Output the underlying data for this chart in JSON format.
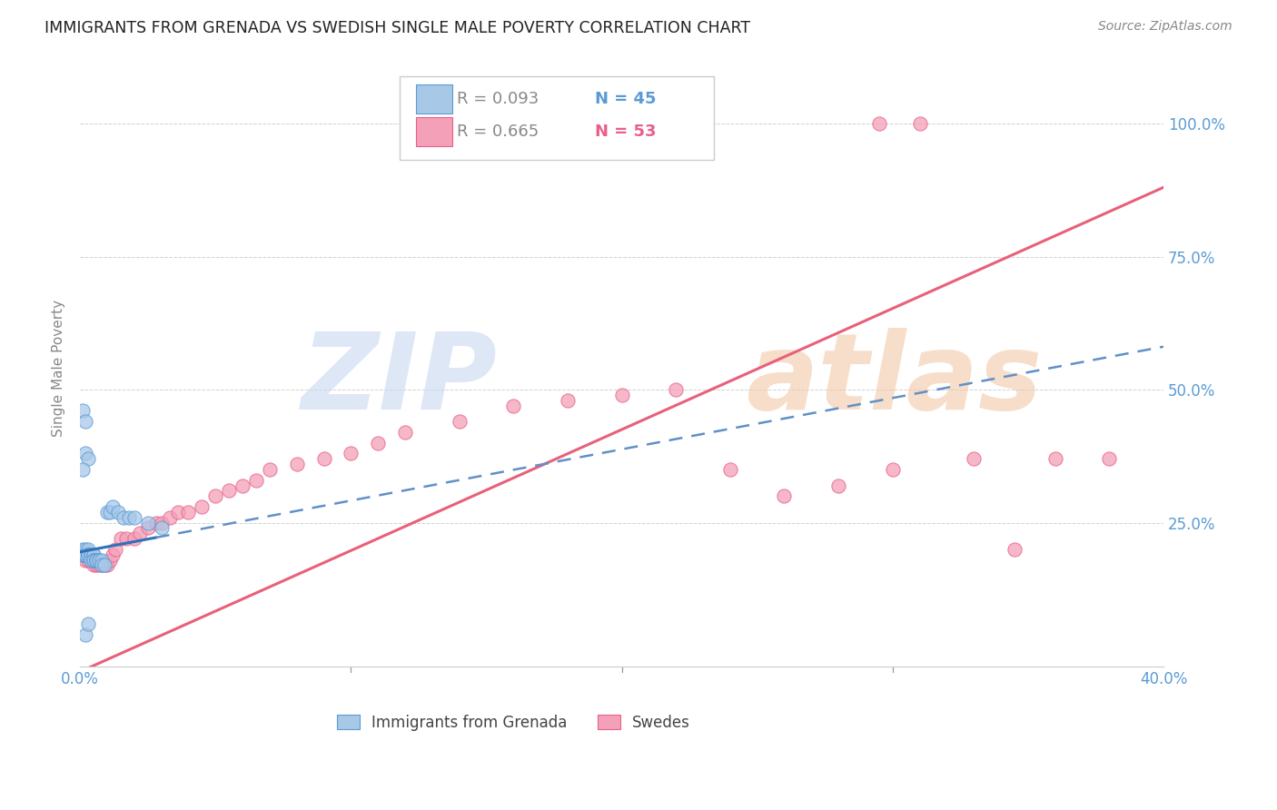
{
  "title": "IMMIGRANTS FROM GRENADA VS SWEDISH SINGLE MALE POVERTY CORRELATION CHART",
  "source": "Source: ZipAtlas.com",
  "ylabel": "Single Male Poverty",
  "legend_blue_r": "R = 0.093",
  "legend_blue_n": "N = 45",
  "legend_pink_r": "R = 0.665",
  "legend_pink_n": "N = 53",
  "legend_label_blue": "Immigrants from Grenada",
  "legend_label_pink": "Swedes",
  "xlim": [
    0.0,
    0.4
  ],
  "ylim": [
    -0.02,
    1.1
  ],
  "yticks": [
    0.25,
    0.5,
    0.75,
    1.0
  ],
  "ytick_labels": [
    "25.0%",
    "50.0%",
    "75.0%",
    "100.0%"
  ],
  "xticks": [
    0.0,
    0.4
  ],
  "xtick_labels": [
    "0.0%",
    "40.0%"
  ],
  "color_blue": "#a8c8e8",
  "color_pink": "#f4a0b8",
  "edge_blue": "#5b9bd5",
  "edge_pink": "#e8608a",
  "trend_blue_solid": "#3070b8",
  "trend_blue_dashed": "#6090c8",
  "trend_pink": "#e8607a",
  "blue_x": [
    0.001,
    0.001,
    0.001,
    0.001,
    0.002,
    0.002,
    0.002,
    0.002,
    0.002,
    0.003,
    0.003,
    0.003,
    0.003,
    0.003,
    0.004,
    0.004,
    0.004,
    0.004,
    0.005,
    0.005,
    0.005,
    0.005,
    0.005,
    0.006,
    0.006,
    0.006,
    0.006,
    0.007,
    0.007,
    0.008,
    0.008,
    0.009,
    0.01,
    0.011,
    0.012,
    0.014,
    0.016,
    0.018,
    0.02,
    0.025,
    0.03,
    0.002,
    0.003,
    0.001,
    0.003
  ],
  "blue_y": [
    0.2,
    0.19,
    0.19,
    0.46,
    0.2,
    0.19,
    0.19,
    0.44,
    0.04,
    0.2,
    0.19,
    0.19,
    0.19,
    0.19,
    0.19,
    0.19,
    0.19,
    0.18,
    0.19,
    0.19,
    0.18,
    0.18,
    0.18,
    0.18,
    0.18,
    0.18,
    0.18,
    0.18,
    0.18,
    0.18,
    0.17,
    0.17,
    0.27,
    0.27,
    0.28,
    0.27,
    0.26,
    0.26,
    0.26,
    0.25,
    0.24,
    0.38,
    0.37,
    0.35,
    0.06
  ],
  "pink_x": [
    0.001,
    0.002,
    0.002,
    0.003,
    0.003,
    0.004,
    0.004,
    0.005,
    0.005,
    0.006,
    0.007,
    0.008,
    0.009,
    0.01,
    0.011,
    0.012,
    0.013,
    0.015,
    0.017,
    0.02,
    0.022,
    0.025,
    0.028,
    0.03,
    0.033,
    0.036,
    0.04,
    0.045,
    0.05,
    0.055,
    0.06,
    0.065,
    0.07,
    0.08,
    0.09,
    0.1,
    0.11,
    0.12,
    0.14,
    0.16,
    0.18,
    0.2,
    0.22,
    0.24,
    0.26,
    0.28,
    0.3,
    0.33,
    0.36,
    0.38,
    0.295,
    0.31,
    0.345
  ],
  "pink_y": [
    0.19,
    0.19,
    0.18,
    0.19,
    0.18,
    0.18,
    0.18,
    0.18,
    0.17,
    0.17,
    0.17,
    0.17,
    0.17,
    0.17,
    0.18,
    0.19,
    0.2,
    0.22,
    0.22,
    0.22,
    0.23,
    0.24,
    0.25,
    0.25,
    0.26,
    0.27,
    0.27,
    0.28,
    0.3,
    0.31,
    0.32,
    0.33,
    0.35,
    0.36,
    0.37,
    0.38,
    0.4,
    0.42,
    0.44,
    0.47,
    0.48,
    0.49,
    0.5,
    0.35,
    0.3,
    0.32,
    0.35,
    0.37,
    0.37,
    0.37,
    1.0,
    1.0,
    0.2
  ],
  "blue_trend_x0": 0.0,
  "blue_trend_y0": 0.195,
  "blue_trend_x1": 0.028,
  "blue_trend_y1": 0.222,
  "blue_trend_slope": 0.96,
  "blue_trend_intercept": 0.193,
  "pink_trend_x0": 0.0,
  "pink_trend_y0": -0.03,
  "pink_trend_x1": 0.4,
  "pink_trend_y1": 0.88,
  "watermark_zip_color": "#c8d8f0",
  "watermark_atlas_color": "#f0c8a8",
  "background_color": "#ffffff"
}
